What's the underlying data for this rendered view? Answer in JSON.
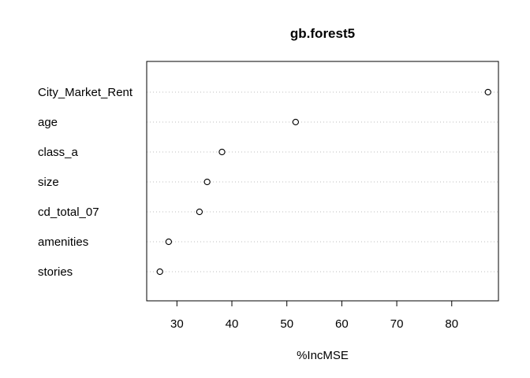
{
  "chart_data": {
    "type": "scatter",
    "subtype": "dotchart",
    "title": "gb.forest5",
    "xlabel": "%IncMSE",
    "ylabel": "",
    "xlim": [
      24.5,
      88.5
    ],
    "xticks": [
      30,
      40,
      50,
      60,
      70,
      80
    ],
    "grid": "dotted horizontal guide lines",
    "categories": [
      "City_Market_Rent",
      "age",
      "class_a",
      "size",
      "cd_total_07",
      "amenities",
      "stories"
    ],
    "values": [
      86.6,
      51.6,
      38.2,
      35.5,
      34.1,
      28.5,
      26.9
    ]
  }
}
